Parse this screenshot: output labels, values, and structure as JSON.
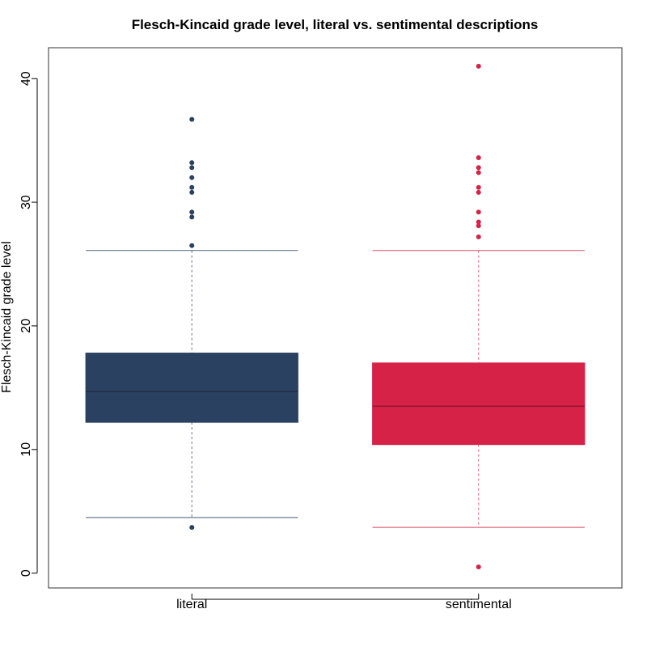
{
  "chart_data": {
    "type": "box",
    "title": "Flesch-Kincaid grade level, literal vs. sentimental descriptions",
    "xlabel": "",
    "ylabel": "Flesch-Kincaid grade level",
    "ylim": [
      -1.2,
      42.5
    ],
    "yticks": [
      0,
      10,
      20,
      30,
      40
    ],
    "grid": false,
    "categories": [
      "literal",
      "sentimental"
    ],
    "series": [
      {
        "category": "literal",
        "color": "#2b4161",
        "whisker_low": 4.5,
        "q1": 12.2,
        "median": 14.7,
        "q3": 17.8,
        "whisker_high": 26.1,
        "outliers": [
          3.7,
          26.5,
          28.8,
          29.2,
          30.8,
          31.2,
          32.0,
          32.8,
          33.2,
          36.7
        ]
      },
      {
        "category": "sentimental",
        "color": "#d62246",
        "whisker_low": 3.7,
        "q1": 10.4,
        "median": 13.5,
        "q3": 17.0,
        "whisker_high": 26.1,
        "outliers": [
          0.5,
          27.2,
          28.1,
          28.4,
          29.2,
          30.8,
          31.2,
          32.4,
          32.8,
          33.6,
          41.0
        ]
      }
    ]
  }
}
